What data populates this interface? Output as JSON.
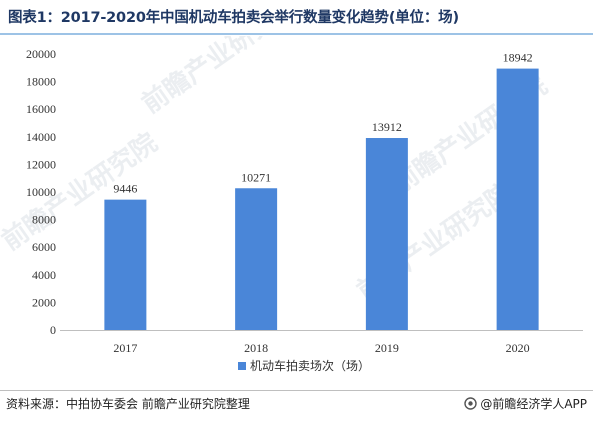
{
  "title": "图表1：2017-2020年中国机动车拍卖会举行数量变化趋势(单位：场)",
  "watermark_text": "前瞻产业研究院",
  "chart_data": {
    "type": "bar",
    "categories": [
      "2017",
      "2018",
      "2019",
      "2020"
    ],
    "series": [
      {
        "name": "机动车拍卖场次（场）",
        "values": [
          9446,
          10271,
          13912,
          18942
        ],
        "color": "#4a86d8"
      }
    ],
    "ylim": [
      0,
      20000
    ],
    "yticks": [
      0,
      2000,
      4000,
      6000,
      8000,
      10000,
      12000,
      14000,
      16000,
      18000,
      20000
    ],
    "grid": false,
    "legend_position": "bottom",
    "data_labels": true
  },
  "footer": {
    "source": "资料来源：中拍协车委会 前瞻产业研究院整理",
    "brand": "@前瞻经济学人APP",
    "brand_icon": "circle-logo-icon"
  }
}
